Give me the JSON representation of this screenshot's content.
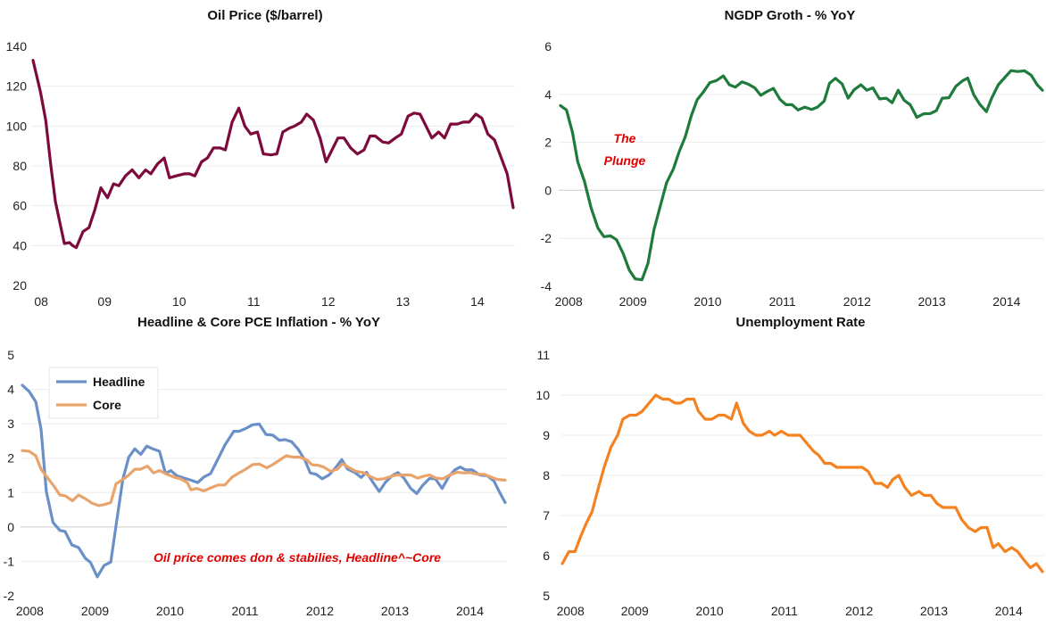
{
  "chart_data": [
    {
      "id": "oil",
      "type": "line",
      "title": "Oil Price ($/barrel)",
      "xlabel": "",
      "ylabel": "",
      "ylim": [
        20,
        140
      ],
      "yticks": [
        20,
        40,
        60,
        80,
        100,
        120,
        140
      ],
      "xticks": [
        {
          "x": 2008.65,
          "label": "08"
        },
        {
          "x": 2009.5,
          "label": "09"
        },
        {
          "x": 2010.5,
          "label": "10"
        },
        {
          "x": 2011.5,
          "label": "11"
        },
        {
          "x": 2012.5,
          "label": "12"
        },
        {
          "x": 2013.5,
          "label": "13"
        },
        {
          "x": 2014.5,
          "label": "14"
        }
      ],
      "grid": true,
      "colors": {
        "line": "#7d0a3c"
      },
      "series": [
        {
          "name": "Oil Price",
          "x": [
            2008.54,
            2008.64,
            2008.71,
            2008.78,
            2008.84,
            2008.96,
            2009.03,
            2009.07,
            2009.12,
            2009.21,
            2009.29,
            2009.37,
            2009.45,
            2009.54,
            2009.62,
            2009.69,
            2009.78,
            2009.87,
            2009.96,
            2010.05,
            2010.12,
            2010.21,
            2010.3,
            2010.37,
            2010.46,
            2010.57,
            2010.64,
            2010.71,
            2010.8,
            2010.88,
            2010.96,
            2011.05,
            2011.12,
            2011.21,
            2011.3,
            2011.38,
            2011.46,
            2011.55,
            2011.63,
            2011.73,
            2011.81,
            2011.89,
            2011.98,
            2012.05,
            2012.14,
            2012.21,
            2012.3,
            2012.39,
            2012.47,
            2012.55,
            2012.63,
            2012.71,
            2012.8,
            2012.89,
            2012.98,
            2013.06,
            2013.13,
            2013.23,
            2013.31,
            2013.4,
            2013.48,
            2013.57,
            2013.65,
            2013.73,
            2013.81,
            2013.89,
            2013.98,
            2014.06,
            2014.14,
            2014.23,
            2014.31,
            2014.39,
            2014.48,
            2014.56,
            2014.64,
            2014.73,
            2014.81,
            2014.9,
            2014.98
          ],
          "y": [
            133,
            117,
            103,
            80,
            62,
            41,
            41.5,
            40,
            39,
            47,
            49,
            58,
            69,
            64,
            71,
            70,
            75,
            78,
            74,
            78,
            76,
            81,
            84,
            74,
            75,
            76,
            76,
            75,
            82,
            84,
            89,
            89,
            88,
            102,
            109,
            100,
            96,
            97,
            86,
            85.5,
            86,
            97,
            99,
            100,
            102,
            106,
            103,
            94,
            82,
            88,
            94,
            94,
            89,
            86,
            88,
            95,
            95,
            92,
            91.5,
            94,
            96,
            105,
            106.5,
            106,
            100,
            94,
            97,
            94,
            101,
            101,
            102,
            102,
            106,
            104,
            96,
            93,
            85,
            76,
            59
          ]
        }
      ]
    },
    {
      "id": "ngdp",
      "type": "line",
      "title": "NGDP Groth - % YoY",
      "xlabel": "",
      "ylabel": "",
      "ylim": [
        -4,
        6
      ],
      "yticks": [
        -4,
        -2,
        0,
        2,
        4,
        6
      ],
      "xticks": [
        {
          "x": 2008.64,
          "label": "2008"
        },
        {
          "x": 2009.5,
          "label": "2009"
        },
        {
          "x": 2010.5,
          "label": "2010"
        },
        {
          "x": 2011.5,
          "label": "2011"
        },
        {
          "x": 2012.5,
          "label": "2012"
        },
        {
          "x": 2013.5,
          "label": "2013"
        },
        {
          "x": 2014.5,
          "label": "2014"
        }
      ],
      "grid": true,
      "colors": {
        "line": "#1e7b3c",
        "annotation": "#e00000"
      },
      "annotations": [
        "The",
        "Plunge"
      ],
      "series": [
        {
          "name": "NGDP Growth",
          "x": [
            2008.53,
            2008.61,
            2008.69,
            2008.76,
            2008.85,
            2008.94,
            2009.03,
            2009.11,
            2009.2,
            2009.28,
            2009.37,
            2009.45,
            2009.53,
            2009.62,
            2009.7,
            2009.78,
            2009.86,
            2009.95,
            2010.04,
            2010.12,
            2010.2,
            2010.28,
            2010.36,
            2010.44,
            2010.53,
            2010.62,
            2010.71,
            2010.79,
            2010.87,
            2010.96,
            2011.04,
            2011.13,
            2011.21,
            2011.29,
            2011.38,
            2011.47,
            2011.55,
            2011.63,
            2011.71,
            2011.8,
            2011.89,
            2011.97,
            2012.06,
            2012.13,
            2012.21,
            2012.3,
            2012.38,
            2012.46,
            2012.55,
            2012.63,
            2012.71,
            2012.8,
            2012.89,
            2012.97,
            2013.05,
            2013.13,
            2013.21,
            2013.3,
            2013.39,
            2013.48,
            2013.56,
            2013.64,
            2013.73,
            2013.82,
            2013.91,
            2013.98,
            2014.06,
            2014.14,
            2014.23,
            2014.3,
            2014.39,
            2014.47,
            2014.56,
            2014.65,
            2014.74,
            2014.83,
            2014.91,
            2014.98
          ],
          "y": [
            3.53,
            3.35,
            2.42,
            1.19,
            0.38,
            -0.73,
            -1.57,
            -1.93,
            -1.9,
            -2.06,
            -2.64,
            -3.32,
            -3.69,
            -3.73,
            -3.05,
            -1.65,
            -0.73,
            0.32,
            0.88,
            1.62,
            2.23,
            3.1,
            3.78,
            4.09,
            4.49,
            4.58,
            4.77,
            4.4,
            4.3,
            4.52,
            4.43,
            4.27,
            3.96,
            4.11,
            4.25,
            3.78,
            3.57,
            3.57,
            3.35,
            3.47,
            3.37,
            3.47,
            3.72,
            4.46,
            4.67,
            4.43,
            3.84,
            4.19,
            4.4,
            4.17,
            4.27,
            3.81,
            3.84,
            3.65,
            4.17,
            3.75,
            3.57,
            3.04,
            3.19,
            3.2,
            3.32,
            3.84,
            3.86,
            4.33,
            4.56,
            4.68,
            3.99,
            3.59,
            3.28,
            3.84,
            4.4,
            4.68,
            4.99,
            4.95,
            4.98,
            4.8,
            4.4,
            4.17
          ]
        }
      ]
    },
    {
      "id": "pce",
      "type": "line",
      "title": "Headline & Core PCE Inflation - % YoY",
      "xlabel": "",
      "ylabel": "",
      "ylim": [
        -2,
        5
      ],
      "yticks": [
        -2,
        -1,
        0,
        1,
        2,
        3,
        4,
        5
      ],
      "xticks": [
        {
          "x": 2008.63,
          "label": "2008"
        },
        {
          "x": 2009.5,
          "label": "2009"
        },
        {
          "x": 2010.5,
          "label": "2010"
        },
        {
          "x": 2011.5,
          "label": "2011"
        },
        {
          "x": 2012.5,
          "label": "2012"
        },
        {
          "x": 2013.5,
          "label": "2013"
        },
        {
          "x": 2014.5,
          "label": "2014"
        }
      ],
      "grid": true,
      "legend": {
        "position": "top-left",
        "entries": [
          "Headline",
          "Core"
        ]
      },
      "annotations": [
        "Oil price comes don & stabilies, Headline^~Core"
      ],
      "colors": {
        "headline": "#6b90c8",
        "core": "#e9a46c",
        "annotation": "#e00000"
      },
      "series": [
        {
          "name": "Headline",
          "x": [
            2008.53,
            2008.62,
            2008.71,
            2008.78,
            2008.85,
            2008.94,
            2009.03,
            2009.1,
            2009.19,
            2009.28,
            2009.37,
            2009.44,
            2009.53,
            2009.62,
            2009.71,
            2009.8,
            2009.87,
            2009.95,
            2010.03,
            2010.11,
            2010.19,
            2010.27,
            2010.36,
            2010.44,
            2010.51,
            2010.59,
            2010.69,
            2010.78,
            2010.87,
            2010.95,
            2011.04,
            2011.14,
            2011.23,
            2011.35,
            2011.42,
            2011.51,
            2011.6,
            2011.69,
            2011.78,
            2011.87,
            2011.96,
            2012.03,
            2012.12,
            2012.21,
            2012.3,
            2012.37,
            2012.45,
            2012.53,
            2012.62,
            2012.71,
            2012.79,
            2012.87,
            2012.96,
            2013.05,
            2013.12,
            2013.21,
            2013.29,
            2013.37,
            2013.46,
            2013.54,
            2013.62,
            2013.71,
            2013.79,
            2013.87,
            2013.96,
            2014.04,
            2014.13,
            2014.22,
            2014.3,
            2014.37,
            2014.44,
            2014.53,
            2014.63,
            2014.73,
            2014.82,
            2014.89,
            2014.97
          ],
          "y": [
            4.12,
            3.94,
            3.64,
            2.84,
            1.03,
            0.13,
            -0.1,
            -0.13,
            -0.52,
            -0.6,
            -0.91,
            -1.03,
            -1.45,
            -1.12,
            -1.02,
            0.34,
            1.38,
            2.03,
            2.27,
            2.11,
            2.35,
            2.27,
            2.2,
            1.55,
            1.64,
            1.49,
            1.42,
            1.36,
            1.29,
            1.45,
            1.55,
            1.98,
            2.37,
            2.78,
            2.78,
            2.86,
            2.97,
            2.99,
            2.69,
            2.67,
            2.52,
            2.54,
            2.48,
            2.26,
            1.94,
            1.57,
            1.53,
            1.4,
            1.51,
            1.72,
            1.96,
            1.68,
            1.59,
            1.44,
            1.59,
            1.29,
            1.03,
            1.29,
            1.49,
            1.58,
            1.42,
            1.12,
            0.97,
            1.21,
            1.41,
            1.4,
            1.12,
            1.47,
            1.66,
            1.74,
            1.66,
            1.66,
            1.51,
            1.49,
            1.34,
            1.03,
            0.71
          ]
        },
        {
          "name": "Core",
          "x": [
            2008.53,
            2008.62,
            2008.71,
            2008.78,
            2008.87,
            2008.96,
            2009.03,
            2009.1,
            2009.2,
            2009.28,
            2009.37,
            2009.46,
            2009.55,
            2009.64,
            2009.71,
            2009.78,
            2009.87,
            2009.95,
            2010.03,
            2010.11,
            2010.2,
            2010.28,
            2010.36,
            2010.46,
            2010.55,
            2010.64,
            2010.73,
            2010.78,
            2010.86,
            2010.95,
            2011.05,
            2011.14,
            2011.23,
            2011.33,
            2011.42,
            2011.51,
            2011.6,
            2011.69,
            2011.79,
            2011.87,
            2011.96,
            2012.05,
            2012.14,
            2012.23,
            2012.33,
            2012.39,
            2012.48,
            2012.55,
            2012.64,
            2012.73,
            2012.8,
            2012.89,
            2012.98,
            2013.08,
            2013.17,
            2013.26,
            2013.35,
            2013.44,
            2013.53,
            2013.62,
            2013.71,
            2013.8,
            2013.89,
            2013.96,
            2014.05,
            2014.14,
            2014.23,
            2014.33,
            2014.42,
            2014.51,
            2014.6,
            2014.69,
            2014.78,
            2014.87,
            2014.97
          ],
          "y": [
            2.22,
            2.2,
            2.07,
            1.68,
            1.42,
            1.16,
            0.93,
            0.91,
            0.76,
            0.93,
            0.82,
            0.69,
            0.62,
            0.66,
            0.71,
            1.25,
            1.38,
            1.51,
            1.68,
            1.68,
            1.77,
            1.57,
            1.64,
            1.53,
            1.45,
            1.4,
            1.29,
            1.08,
            1.12,
            1.05,
            1.14,
            1.22,
            1.22,
            1.45,
            1.57,
            1.68,
            1.81,
            1.83,
            1.72,
            1.81,
            1.94,
            2.07,
            2.03,
            2.03,
            1.94,
            1.81,
            1.79,
            1.74,
            1.62,
            1.68,
            1.84,
            1.72,
            1.62,
            1.58,
            1.47,
            1.38,
            1.4,
            1.47,
            1.51,
            1.51,
            1.51,
            1.42,
            1.48,
            1.51,
            1.42,
            1.4,
            1.51,
            1.59,
            1.57,
            1.58,
            1.53,
            1.53,
            1.45,
            1.38,
            1.36
          ]
        }
      ]
    },
    {
      "id": "unemp",
      "type": "line",
      "title": "Unemployment Rate",
      "xlabel": "",
      "ylabel": "",
      "ylim": [
        5,
        11
      ],
      "yticks": [
        5,
        6,
        7,
        8,
        9,
        10,
        11
      ],
      "xticks": [
        {
          "x": 2008.64,
          "label": "2008"
        },
        {
          "x": 2009.5,
          "label": "2009"
        },
        {
          "x": 2010.5,
          "label": "2010"
        },
        {
          "x": 2011.5,
          "label": "2011"
        },
        {
          "x": 2012.5,
          "label": "2012"
        },
        {
          "x": 2013.5,
          "label": "2013"
        },
        {
          "x": 2014.5,
          "label": "2014"
        }
      ],
      "grid": true,
      "colors": {
        "line": "#f58220"
      },
      "series": [
        {
          "name": "Unemployment Rate",
          "x": [
            2008.53,
            2008.62,
            2008.7,
            2008.78,
            2008.85,
            2008.93,
            2009.0,
            2009.09,
            2009.18,
            2009.27,
            2009.34,
            2009.43,
            2009.52,
            2009.6,
            2009.69,
            2009.78,
            2009.87,
            2009.95,
            2010.04,
            2010.11,
            2010.2,
            2010.29,
            2010.35,
            2010.44,
            2010.53,
            2010.62,
            2010.7,
            2010.79,
            2010.86,
            2010.95,
            2011.03,
            2011.12,
            2011.2,
            2011.3,
            2011.37,
            2011.46,
            2011.55,
            2011.63,
            2011.71,
            2011.8,
            2011.89,
            2011.96,
            2012.04,
            2012.12,
            2012.2,
            2012.29,
            2012.38,
            2012.49,
            2012.54,
            2012.62,
            2012.71,
            2012.8,
            2012.88,
            2012.95,
            2013.03,
            2013.11,
            2013.2,
            2013.3,
            2013.37,
            2013.46,
            2013.54,
            2013.62,
            2013.71,
            2013.79,
            2013.87,
            2013.96,
            2014.05,
            2014.13,
            2014.21,
            2014.29,
            2014.36,
            2014.45,
            2014.54,
            2014.62,
            2014.7,
            2014.79,
            2014.87,
            2014.95
          ],
          "y": [
            5.8,
            6.1,
            6.1,
            6.5,
            6.8,
            7.1,
            7.6,
            8.2,
            8.7,
            9.0,
            9.4,
            9.5,
            9.5,
            9.6,
            9.8,
            10.0,
            9.9,
            9.9,
            9.8,
            9.8,
            9.9,
            9.9,
            9.6,
            9.4,
            9.4,
            9.5,
            9.5,
            9.4,
            9.8,
            9.3,
            9.1,
            9.0,
            9.0,
            9.1,
            9.0,
            9.1,
            9.0,
            9.0,
            9.0,
            8.8,
            8.6,
            8.5,
            8.3,
            8.3,
            8.2,
            8.2,
            8.2,
            8.2,
            8.2,
            8.1,
            7.8,
            7.8,
            7.7,
            7.9,
            8.0,
            7.7,
            7.5,
            7.6,
            7.5,
            7.5,
            7.3,
            7.2,
            7.2,
            7.2,
            6.9,
            6.7,
            6.6,
            6.7,
            6.7,
            6.2,
            6.3,
            6.1,
            6.2,
            6.1,
            5.9,
            5.7,
            5.8,
            5.6
          ]
        }
      ]
    }
  ]
}
